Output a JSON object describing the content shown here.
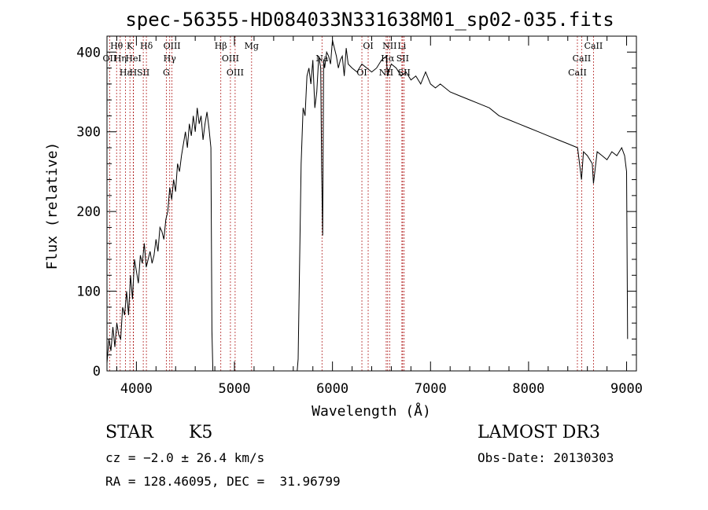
{
  "chart_data": {
    "type": "line",
    "title": "spec-56355-HD084033N331638M01_sp02-035.fits",
    "xlabel": "Wavelength (Å)",
    "ylabel": "Flux (relative)",
    "xlim": [
      3700,
      9100
    ],
    "ylim": [
      0,
      420
    ],
    "xticks": [
      "4000",
      "5000",
      "6000",
      "7000",
      "8000",
      "9000"
    ],
    "yticks": [
      "0",
      "100",
      "200",
      "300",
      "400"
    ],
    "grid": false,
    "line_color": "#000000",
    "marker_color": "#b22222",
    "series": [
      {
        "x": [
          3700,
          3720,
          3740,
          3760,
          3780,
          3800,
          3820,
          3840,
          3860,
          3880,
          3900,
          3920,
          3940,
          3960,
          3980,
          4000,
          4020,
          4040,
          4060,
          4080,
          4100,
          4120,
          4140,
          4160,
          4180,
          4200,
          4220,
          4240,
          4260,
          4280,
          4300,
          4320,
          4340,
          4360,
          4380,
          4400,
          4420,
          4440,
          4460,
          4480,
          4500,
          4520,
          4540,
          4560,
          4580,
          4600,
          4620,
          4640,
          4660,
          4680,
          4700,
          4720,
          4740,
          4760,
          4770,
          4780,
          4800,
          5000,
          5200,
          5400,
          5600,
          5640,
          5650,
          5660,
          5680,
          5700,
          5720,
          5740,
          5760,
          5780,
          5800,
          5820,
          5840,
          5860,
          5880,
          5890,
          5900,
          5910,
          5920,
          5940,
          5960,
          5980,
          6000,
          6020,
          6040,
          6060,
          6080,
          6100,
          6120,
          6140,
          6160,
          6200,
          6250,
          6300,
          6350,
          6400,
          6450,
          6500,
          6550,
          6560,
          6600,
          6650,
          6700,
          6750,
          6800,
          6850,
          6900,
          6950,
          7000,
          7050,
          7100,
          7200,
          7300,
          7400,
          7500,
          7600,
          7700,
          7800,
          7900,
          8000,
          8100,
          8200,
          8300,
          8400,
          8500,
          8540,
          8560,
          8600,
          8650,
          8662,
          8700,
          8750,
          8800,
          8850,
          8900,
          8950,
          8980,
          9000,
          9010
        ],
        "values": [
          10,
          40,
          25,
          55,
          30,
          60,
          45,
          40,
          80,
          70,
          100,
          70,
          120,
          90,
          140,
          125,
          110,
          145,
          135,
          160,
          130,
          140,
          150,
          135,
          145,
          165,
          150,
          180,
          175,
          165,
          190,
          200,
          230,
          215,
          240,
          225,
          260,
          250,
          270,
          285,
          300,
          280,
          310,
          295,
          320,
          300,
          330,
          310,
          320,
          290,
          310,
          325,
          305,
          280,
          50,
          0,
          0,
          0,
          0,
          0,
          0,
          0,
          15,
          100,
          260,
          330,
          320,
          370,
          380,
          360,
          390,
          330,
          350,
          395,
          380,
          250,
          170,
          390,
          380,
          400,
          395,
          385,
          415,
          405,
          395,
          380,
          390,
          395,
          370,
          405,
          385,
          380,
          375,
          385,
          380,
          375,
          380,
          390,
          395,
          370,
          385,
          380,
          370,
          375,
          365,
          370,
          360,
          375,
          360,
          355,
          360,
          350,
          345,
          340,
          335,
          330,
          320,
          315,
          310,
          305,
          300,
          295,
          290,
          285,
          280,
          240,
          275,
          270,
          260,
          235,
          275,
          270,
          265,
          275,
          270,
          280,
          270,
          250,
          40
        ]
      }
    ],
    "lines": [
      {
        "label": "Hθ",
        "x": 3798
      },
      {
        "label": "OII",
        "x": 3727
      },
      {
        "label": "Hε",
        "x": 3889
      },
      {
        "label": "K",
        "x": 3934
      },
      {
        "label": "HeI",
        "x": 3970
      },
      {
        "label": "SII",
        "x": 4070
      },
      {
        "label": "Hδ",
        "x": 4102
      },
      {
        "label": "Hη",
        "x": 3835
      },
      {
        "label": "H",
        "x": 3968
      },
      {
        "label": "OIII",
        "x": 4363
      },
      {
        "label": "Hγ",
        "x": 4340
      },
      {
        "label": "G",
        "x": 4305
      },
      {
        "label": "Hβ",
        "x": 4861
      },
      {
        "label": "OIII",
        "x": 4959
      },
      {
        "label": "OIII",
        "x": 5007
      },
      {
        "label": "Mg",
        "x": 5175
      },
      {
        "label": "Na",
        "x": 5893
      },
      {
        "label": "OI",
        "x": 6300
      },
      {
        "label": "OI",
        "x": 6364
      },
      {
        "label": "Hα",
        "x": 6563
      },
      {
        "label": "NII",
        "x": 6548
      },
      {
        "label": "NII",
        "x": 6583
      },
      {
        "label": "SII",
        "x": 6716
      },
      {
        "label": "SII",
        "x": 6731
      },
      {
        "label": "Li",
        "x": 6708
      },
      {
        "label": "CaII",
        "x": 8542
      },
      {
        "label": "CaII",
        "x": 8498
      },
      {
        "label": "CaII",
        "x": 8662
      }
    ]
  },
  "info": {
    "object_class": "STAR",
    "subclass": "K5",
    "survey": "LAMOST DR3",
    "cz": "cz = −2.0 ± 26.4 km/s",
    "obs_date": "Obs-Date: 20130303",
    "coords": "RA = 128.46095, DEC =  31.96799"
  }
}
